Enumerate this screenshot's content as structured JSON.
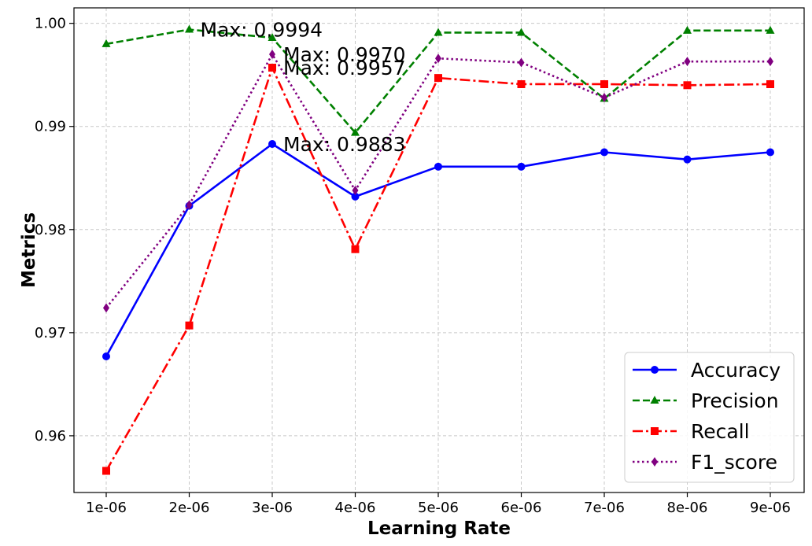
{
  "chart_data": {
    "type": "line",
    "title": "",
    "xlabel": "Learning Rate",
    "ylabel": "Metrics",
    "categories": [
      "1e-06",
      "2e-06",
      "3e-06",
      "4e-06",
      "5e-06",
      "6e-06",
      "7e-06",
      "8e-06",
      "9e-06"
    ],
    "ylim": [
      0.9545,
      1.0015
    ],
    "yticks": [
      0.96,
      0.97,
      0.98,
      0.99,
      1.0
    ],
    "ytick_labels": [
      "0.96",
      "0.97",
      "0.98",
      "0.99",
      "1.00"
    ],
    "grid": true,
    "legend_position": "lower-right",
    "series": [
      {
        "name": "Accuracy",
        "color": "#0000ff",
        "line_style": "solid",
        "marker": "circle",
        "values": [
          0.9677,
          0.9823,
          0.9883,
          0.9832,
          0.9861,
          0.9861,
          0.9875,
          0.9868,
          0.9875
        ]
      },
      {
        "name": "Precision",
        "color": "#008000",
        "line_style": "dashed",
        "marker": "triangle",
        "values": [
          0.998,
          0.9994,
          0.9986,
          0.9894,
          0.9991,
          0.9991,
          0.9927,
          0.9993,
          0.9993
        ]
      },
      {
        "name": "Recall",
        "color": "#ff0000",
        "line_style": "dashdot",
        "marker": "square",
        "values": [
          0.9566,
          0.9707,
          0.9957,
          0.9781,
          0.9947,
          0.9941,
          0.9941,
          0.994,
          0.9941
        ]
      },
      {
        "name": "F1_score",
        "color": "#800080",
        "line_style": "dotted",
        "marker": "diamond",
        "values": [
          0.9724,
          0.9824,
          0.997,
          0.9838,
          0.9966,
          0.9962,
          0.9928,
          0.9963,
          0.9963
        ]
      }
    ],
    "annotations": [
      {
        "text": "Max: 0.9994",
        "x_index": 1,
        "value": 0.9994
      },
      {
        "text": "Max: 0.9970",
        "x_index": 2,
        "value": 0.997
      },
      {
        "text": "Max: 0.9957",
        "x_index": 2,
        "value": 0.9957
      },
      {
        "text": "Max: 0.9883",
        "x_index": 2,
        "value": 0.9883
      }
    ]
  }
}
